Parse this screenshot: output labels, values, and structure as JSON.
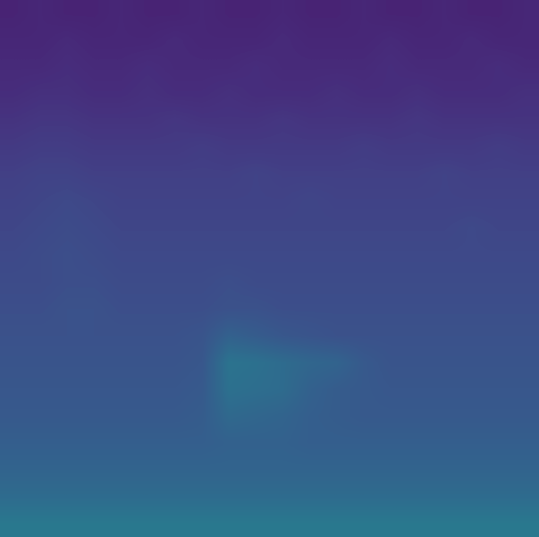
{
  "chart_data": {
    "type": "heatmap",
    "color": "viridis",
    "tick_labels": false,
    "color_range": [
      0,
      1
    ],
    "cells": [
      [
        0.1,
        0.11,
        0.1,
        0.1,
        0.11,
        0.1,
        0.1,
        0.11,
        0.1,
        0.1,
        0.11,
        0.1,
        0.1,
        0.11,
        0.1,
        0.1,
        0.11,
        0.1,
        0.1,
        0.11
      ],
      [
        0.11,
        0.11,
        0.12,
        0.11,
        0.11,
        0.11,
        0.12,
        0.11,
        0.11,
        0.11,
        0.12,
        0.11,
        0.11,
        0.11,
        0.12,
        0.11,
        0.11,
        0.12,
        0.11,
        0.11
      ],
      [
        0.12,
        0.12,
        0.13,
        0.12,
        0.12,
        0.13,
        0.12,
        0.12,
        0.12,
        0.13,
        0.12,
        0.12,
        0.12,
        0.12,
        0.13,
        0.12,
        0.12,
        0.12,
        0.13,
        0.12
      ],
      [
        0.13,
        0.14,
        0.14,
        0.13,
        0.13,
        0.14,
        0.13,
        0.13,
        0.14,
        0.13,
        0.13,
        0.13,
        0.14,
        0.13,
        0.13,
        0.14,
        0.13,
        0.13,
        0.13,
        0.14
      ],
      [
        0.15,
        0.16,
        0.16,
        0.15,
        0.15,
        0.15,
        0.16,
        0.15,
        0.15,
        0.15,
        0.16,
        0.15,
        0.15,
        0.15,
        0.15,
        0.16,
        0.15,
        0.15,
        0.15,
        0.15
      ],
      [
        0.17,
        0.18,
        0.18,
        0.17,
        0.17,
        0.17,
        0.17,
        0.18,
        0.17,
        0.17,
        0.17,
        0.17,
        0.17,
        0.18,
        0.17,
        0.17,
        0.17,
        0.17,
        0.18,
        0.17
      ],
      [
        0.19,
        0.2,
        0.2,
        0.19,
        0.19,
        0.19,
        0.19,
        0.19,
        0.19,
        0.2,
        0.19,
        0.19,
        0.19,
        0.19,
        0.19,
        0.19,
        0.2,
        0.19,
        0.19,
        0.19
      ],
      [
        0.2,
        0.21,
        0.22,
        0.21,
        0.2,
        0.2,
        0.2,
        0.2,
        0.2,
        0.2,
        0.2,
        0.21,
        0.2,
        0.2,
        0.2,
        0.2,
        0.2,
        0.2,
        0.2,
        0.2
      ],
      [
        0.21,
        0.22,
        0.23,
        0.22,
        0.21,
        0.21,
        0.21,
        0.21,
        0.21,
        0.21,
        0.21,
        0.21,
        0.21,
        0.21,
        0.21,
        0.21,
        0.21,
        0.22,
        0.21,
        0.21
      ],
      [
        0.22,
        0.23,
        0.24,
        0.23,
        0.22,
        0.22,
        0.22,
        0.22,
        0.22,
        0.22,
        0.22,
        0.22,
        0.22,
        0.22,
        0.22,
        0.22,
        0.22,
        0.22,
        0.22,
        0.22
      ],
      [
        0.23,
        0.23,
        0.24,
        0.24,
        0.23,
        0.23,
        0.23,
        0.23,
        0.24,
        0.23,
        0.23,
        0.23,
        0.23,
        0.23,
        0.23,
        0.23,
        0.23,
        0.23,
        0.23,
        0.23
      ],
      [
        0.24,
        0.24,
        0.25,
        0.25,
        0.24,
        0.24,
        0.24,
        0.24,
        0.25,
        0.25,
        0.24,
        0.24,
        0.24,
        0.24,
        0.24,
        0.24,
        0.24,
        0.24,
        0.24,
        0.24
      ],
      [
        0.25,
        0.25,
        0.25,
        0.25,
        0.25,
        0.25,
        0.25,
        0.26,
        0.31,
        0.29,
        0.27,
        0.26,
        0.25,
        0.25,
        0.25,
        0.25,
        0.25,
        0.25,
        0.25,
        0.25
      ],
      [
        0.26,
        0.26,
        0.26,
        0.26,
        0.26,
        0.26,
        0.26,
        0.27,
        0.38,
        0.37,
        0.35,
        0.33,
        0.32,
        0.28,
        0.26,
        0.26,
        0.26,
        0.26,
        0.26,
        0.26
      ],
      [
        0.27,
        0.27,
        0.27,
        0.27,
        0.27,
        0.27,
        0.27,
        0.28,
        0.37,
        0.36,
        0.35,
        0.31,
        0.29,
        0.28,
        0.27,
        0.27,
        0.27,
        0.27,
        0.27,
        0.27
      ],
      [
        0.28,
        0.28,
        0.28,
        0.28,
        0.28,
        0.28,
        0.28,
        0.29,
        0.34,
        0.33,
        0.32,
        0.3,
        0.29,
        0.28,
        0.28,
        0.28,
        0.28,
        0.28,
        0.28,
        0.28
      ],
      [
        0.3,
        0.3,
        0.3,
        0.3,
        0.3,
        0.3,
        0.3,
        0.3,
        0.31,
        0.31,
        0.31,
        0.3,
        0.3,
        0.3,
        0.3,
        0.3,
        0.3,
        0.3,
        0.3,
        0.3
      ],
      [
        0.32,
        0.32,
        0.32,
        0.32,
        0.32,
        0.32,
        0.32,
        0.32,
        0.32,
        0.32,
        0.32,
        0.32,
        0.32,
        0.32,
        0.32,
        0.32,
        0.32,
        0.32,
        0.32,
        0.32
      ],
      [
        0.35,
        0.35,
        0.35,
        0.35,
        0.35,
        0.35,
        0.35,
        0.35,
        0.35,
        0.35,
        0.35,
        0.35,
        0.35,
        0.35,
        0.35,
        0.35,
        0.35,
        0.35,
        0.35,
        0.35
      ],
      [
        0.4,
        0.4,
        0.4,
        0.4,
        0.4,
        0.4,
        0.4,
        0.4,
        0.4,
        0.4,
        0.4,
        0.4,
        0.4,
        0.4,
        0.4,
        0.4,
        0.4,
        0.4,
        0.4,
        0.4
      ]
    ]
  }
}
